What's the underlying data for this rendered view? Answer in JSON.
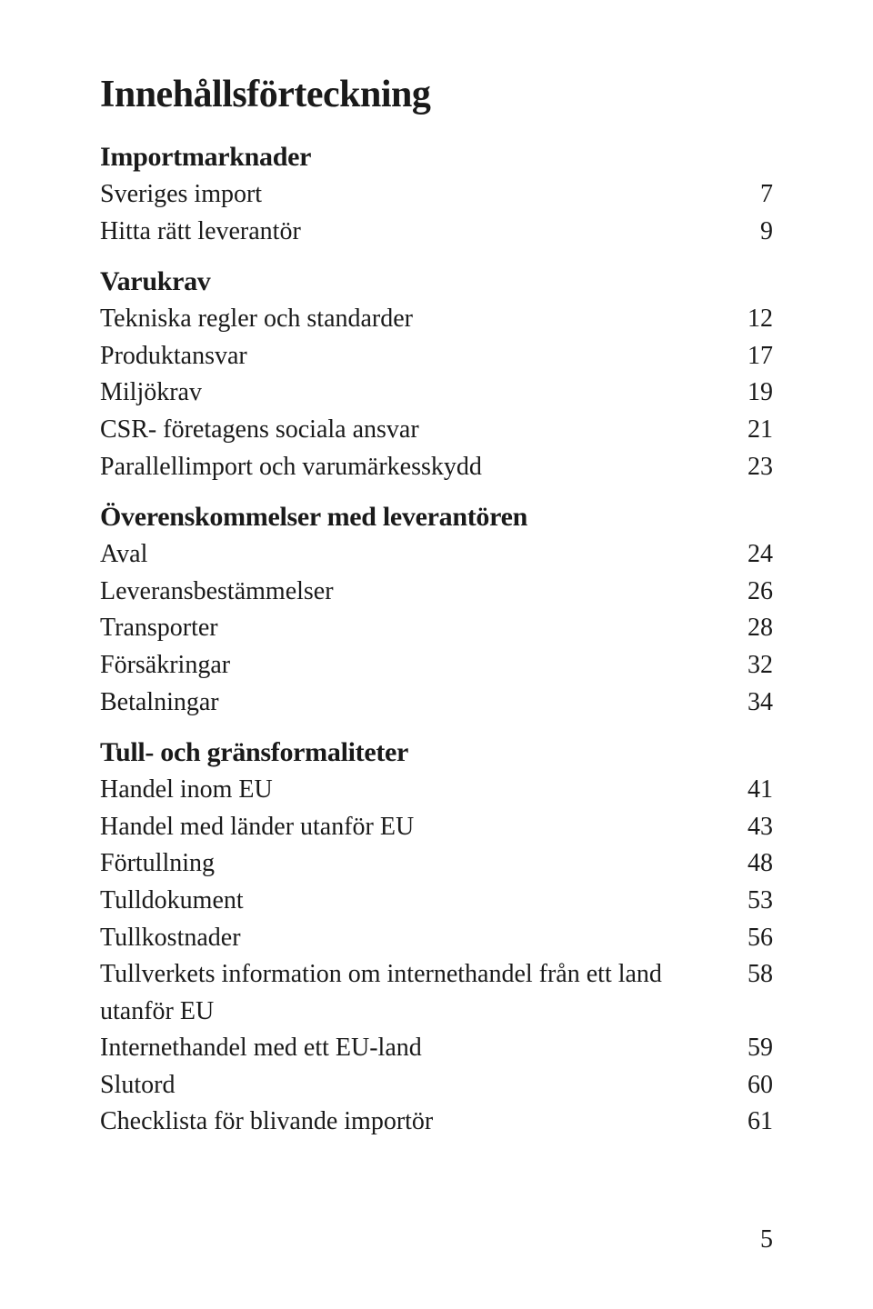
{
  "title": "Innehållsförteckning",
  "sections": [
    {
      "header": "Importmarknader",
      "items": [
        {
          "label": "Sveriges import",
          "page": "7"
        },
        {
          "label": "Hitta rätt leverantör",
          "page": "9"
        }
      ]
    },
    {
      "header": "Varukrav",
      "items": [
        {
          "label": "Tekniska regler och standarder",
          "page": "12"
        },
        {
          "label": "Produktansvar",
          "page": "17"
        },
        {
          "label": "Miljökrav",
          "page": "19"
        },
        {
          "label": "CSR- företagens sociala ansvar",
          "page": "21"
        },
        {
          "label": "Parallellimport och varumärkesskydd",
          "page": "23"
        }
      ]
    },
    {
      "header": "Överenskommelser med leverantören",
      "items": [
        {
          "label": "Aval",
          "page": "24"
        },
        {
          "label": "Leveransbestämmelser",
          "page": "26"
        },
        {
          "label": "Transporter",
          "page": "28"
        },
        {
          "label": "Försäkringar",
          "page": "32"
        },
        {
          "label": "Betalningar",
          "page": "34"
        }
      ]
    },
    {
      "header": "Tull- och gränsformaliteter",
      "items": [
        {
          "label": "Handel inom EU",
          "page": "41"
        },
        {
          "label": "Handel med länder utanför EU",
          "page": "43"
        },
        {
          "label": "Förtullning",
          "page": "48"
        },
        {
          "label": "Tulldokument",
          "page": "53"
        },
        {
          "label": "Tullkostnader",
          "page": "56"
        },
        {
          "label": "Tullverkets information om internethandel från ett land utanför EU",
          "page": "58"
        },
        {
          "label": "Internethandel med ett EU-land",
          "page": "59"
        },
        {
          "label": "Slutord",
          "page": "60"
        },
        {
          "label": "Checklista för blivande importör",
          "page": "61"
        }
      ]
    }
  ],
  "footer_page": "5",
  "colors": {
    "text": "#1a1a1a",
    "background": "#ffffff"
  },
  "typography": {
    "title_fontsize": 42,
    "section_header_fontsize": 30,
    "row_fontsize": 28
  }
}
